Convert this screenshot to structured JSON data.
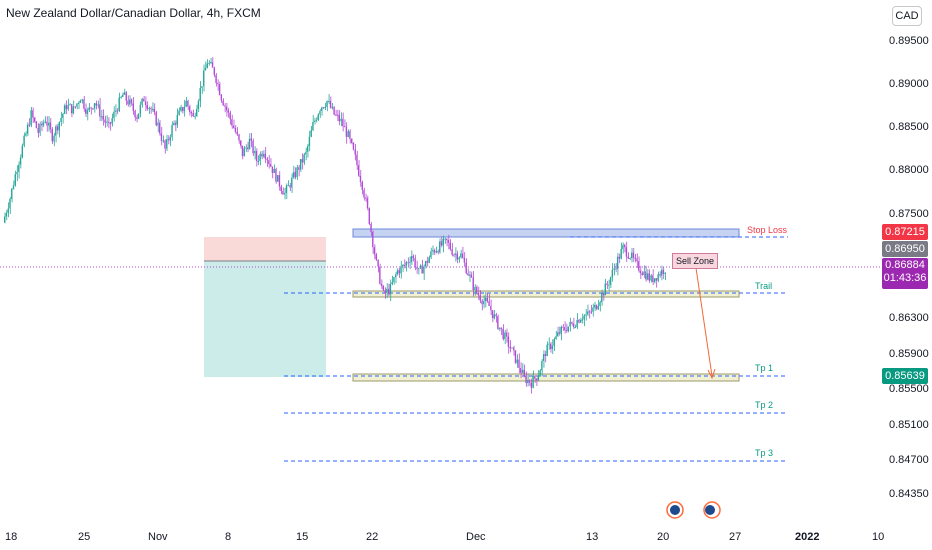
{
  "header": {
    "title": "New Zealand Dollar/Canadian Dollar, 4h, FXCM",
    "currency": "CAD"
  },
  "price_axis": {
    "labels": [
      "0.89500",
      "0.89000",
      "0.88500",
      "0.88000",
      "0.87500",
      "0.86300",
      "0.85900",
      "0.85500",
      "0.85100",
      "0.84700",
      "0.84350"
    ],
    "tags": {
      "stop": "0.87215",
      "close": "0.86950",
      "current": "0.86884",
      "countdown": "01:43:36",
      "tp1": "0.85639"
    }
  },
  "time_axis": {
    "labels": [
      "18",
      "25",
      "Nov",
      "8",
      "15",
      "22",
      "Dec",
      "13",
      "20",
      "27",
      "2022",
      "10"
    ]
  },
  "annotations": {
    "stop_loss": "Stop Loss",
    "trail": "Trail",
    "tp1": "Tp 1",
    "tp2": "Tp 2",
    "tp3": "Tp 3",
    "sell_zone": "Sell Zone"
  },
  "colors": {
    "up": "#26a69a",
    "down": "#b34ad6",
    "stop": "#f23645",
    "blue_line": "#2962ff",
    "teal_text": "#089981",
    "current_tag": "#9c27b0",
    "close_tag": "#787b86"
  },
  "chart_data": {
    "type": "candlestick",
    "symbol": "NZD/CAD",
    "timeframe": "4h",
    "close_series": [
      0.8747,
      0.8775,
      0.881,
      0.884,
      0.887,
      0.885,
      0.8865,
      0.8845,
      0.8862,
      0.888,
      0.8875,
      0.889,
      0.8872,
      0.8885,
      0.8868,
      0.8855,
      0.8875,
      0.8892,
      0.8882,
      0.8868,
      0.8888,
      0.8876,
      0.8858,
      0.883,
      0.8855,
      0.887,
      0.8884,
      0.8866,
      0.8898,
      0.893,
      0.8918,
      0.889,
      0.887,
      0.885,
      0.8825,
      0.884,
      0.8818,
      0.883,
      0.8812,
      0.8795,
      0.878,
      0.8795,
      0.881,
      0.8825,
      0.8858,
      0.8878,
      0.8885,
      0.887,
      0.8862,
      0.8845,
      0.882,
      0.879,
      0.875,
      0.87,
      0.8665,
      0.8672,
      0.8692,
      0.8698,
      0.871,
      0.869,
      0.87,
      0.8715,
      0.872,
      0.8725,
      0.8712,
      0.871,
      0.869,
      0.867,
      0.866,
      0.8652,
      0.8635,
      0.862,
      0.8605,
      0.8588,
      0.857,
      0.8565,
      0.8575,
      0.86,
      0.861,
      0.8622,
      0.8628,
      0.8632,
      0.864,
      0.8642,
      0.865,
      0.8665,
      0.868,
      0.87,
      0.8718,
      0.871,
      0.8698,
      0.869,
      0.8682,
      0.8688,
      0.8695
    ],
    "levels": {
      "stop_loss": 0.87215,
      "sell_zone": 0.869,
      "trail": 0.866,
      "tp1": 0.85639,
      "tp2": 0.852,
      "tp3": 0.8475
    }
  }
}
